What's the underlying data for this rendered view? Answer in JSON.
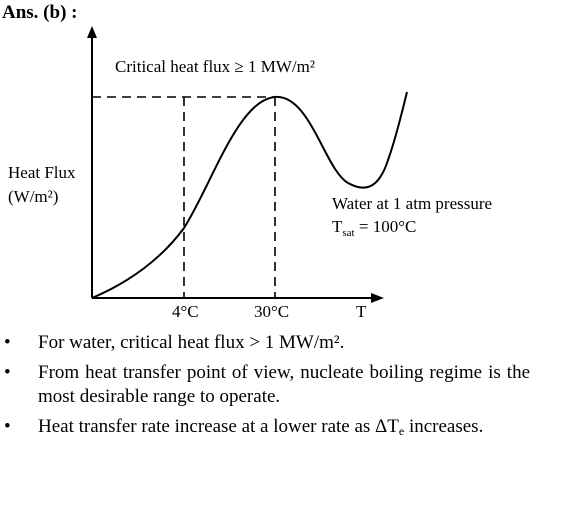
{
  "header": {
    "answer_label": "Ans. (b) :"
  },
  "diagram": {
    "title": "Critical heat flux ≥ 1 MW/m²",
    "y_axis_label_line1": "Heat Flux",
    "y_axis_label_line2": "(W/m²)",
    "x_axis_label": "T",
    "tick_4c": "4°C",
    "tick_30c": "30°C",
    "condition_line1": "Water at 1 atm pressure",
    "condition_line2_main": "T",
    "condition_line2_sub": "sat",
    "condition_line2_rest": " = 100°C"
  },
  "bullets": {
    "marker": "•",
    "item1": "For water, critical heat flux > 1 MW/m².",
    "item2": "From heat transfer point of view, nucleate boiling regime is the most desirable range to operate.",
    "item3_main": "Heat transfer rate increase at a lower rate as ΔT",
    "item3_sub": "e",
    "item3_end": " increases."
  }
}
